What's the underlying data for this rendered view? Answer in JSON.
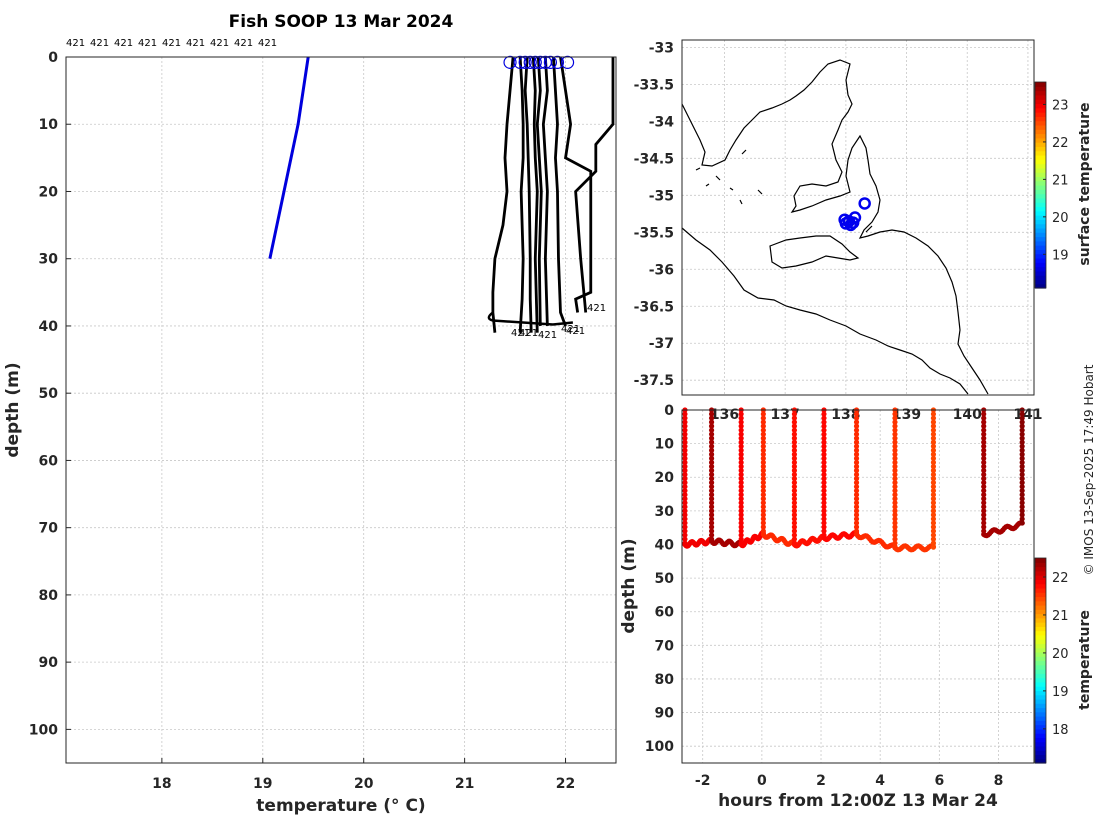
{
  "copyright": "© IMOS 13-Sep-2025 17:49 Hobart",
  "chart_data": [
    {
      "type": "line",
      "id": "profiles",
      "title": "Fish SOOP 13 Mar 2024",
      "xlabel": "temperature (° C)",
      "ylabel": "depth (m)",
      "xlim": [
        17.05,
        22.5
      ],
      "ylim": [
        0,
        105
      ],
      "xticks": [
        "18",
        "19",
        "20",
        "21",
        "22"
      ],
      "yticks": [
        "0",
        "10",
        "20",
        "30",
        "40",
        "50",
        "60",
        "70",
        "80",
        "90",
        "100"
      ],
      "top_labels": [
        "421",
        "421",
        "421",
        "421",
        "421",
        "421",
        "421",
        "421",
        "421"
      ],
      "bottom_labels": [
        "421",
        "421",
        "421",
        "421",
        "421",
        "421"
      ],
      "reference_line": {
        "name": "reference",
        "color": "#0000dd",
        "temp": [
          19.45,
          19.35,
          19.07
        ],
        "depth": [
          0,
          10,
          30
        ]
      },
      "series": [
        {
          "name": "profile-1",
          "temp": [
            21.48,
            21.45,
            21.42,
            21.4,
            21.42,
            21.38,
            21.3,
            21.28,
            21.28,
            21.3
          ],
          "depth": [
            0,
            5,
            10,
            15,
            20,
            25,
            30,
            35,
            38,
            41
          ]
        },
        {
          "name": "profile-2",
          "temp": [
            21.55,
            21.57,
            21.58,
            21.58,
            21.56,
            21.58,
            21.57,
            21.55
          ],
          "depth": [
            0,
            5,
            10,
            15,
            20,
            30,
            36,
            41
          ]
        },
        {
          "name": "profile-3",
          "temp": [
            21.62,
            21.6,
            21.62,
            21.63,
            21.64,
            21.65,
            21.65,
            21.66
          ],
          "depth": [
            0,
            5,
            10,
            15,
            20,
            30,
            36,
            41
          ]
        },
        {
          "name": "profile-4",
          "temp": [
            21.68,
            21.7,
            21.69,
            21.7,
            21.72,
            21.7,
            21.72
          ],
          "depth": [
            0,
            5,
            10,
            15,
            20,
            30,
            41
          ]
        },
        {
          "name": "profile-5",
          "temp": [
            21.73,
            21.75,
            21.72,
            21.76,
            21.74,
            21.75
          ],
          "depth": [
            0,
            5,
            10,
            20,
            30,
            40
          ]
        },
        {
          "name": "profile-6",
          "temp": [
            21.8,
            21.82,
            21.78,
            21.8,
            21.82,
            21.8,
            21.82
          ],
          "depth": [
            0,
            5,
            10,
            15,
            20,
            30,
            40
          ]
        },
        {
          "name": "profile-7",
          "temp": [
            21.88,
            21.9,
            21.92,
            21.9,
            21.92,
            21.93,
            21.95,
            22.0
          ],
          "depth": [
            0,
            5,
            10,
            15,
            20,
            30,
            38,
            40
          ]
        },
        {
          "name": "profile-8",
          "temp": [
            21.95,
            22.0,
            22.05,
            22.0,
            22.25,
            22.25,
            22.1,
            22.12
          ],
          "depth": [
            0,
            5,
            10,
            15,
            17,
            35,
            36,
            38
          ]
        },
        {
          "name": "profile-9",
          "temp": [
            22.47,
            22.47,
            22.3,
            22.3,
            22.1,
            22.15,
            22.2
          ],
          "depth": [
            0,
            10,
            13,
            17,
            20,
            30,
            38
          ]
        }
      ],
      "start_markers": [
        21.45,
        21.55,
        21.6,
        21.65,
        21.7,
        21.75,
        21.8,
        21.85,
        21.92,
        22.02
      ]
    },
    {
      "type": "map",
      "id": "map",
      "xlim": [
        135.3,
        141.1
      ],
      "ylim": [
        -37.7,
        -32.9
      ],
      "xticks": [
        "136",
        "137",
        "138",
        "139",
        "140",
        "141"
      ],
      "yticks": [
        "-33",
        "-33.5",
        "-34",
        "-34.5",
        "-35",
        "-35.5",
        "-36",
        "-36.5",
        "-37",
        "-37.5"
      ],
      "colorbar": {
        "label": "surface temperature",
        "ticks": [
          "19",
          "20",
          "21",
          "22",
          "23"
        ],
        "range": [
          18.1,
          23.6
        ]
      },
      "stations": [
        {
          "lon": 138.31,
          "lat": -35.11
        },
        {
          "lon": 138.15,
          "lat": -35.3
        },
        {
          "lon": 138.05,
          "lat": -35.35
        },
        {
          "lon": 138.0,
          "lat": -35.38
        },
        {
          "lon": 138.08,
          "lat": -35.4
        },
        {
          "lon": 137.98,
          "lat": -35.33
        },
        {
          "lon": 138.12,
          "lat": -35.37
        }
      ]
    },
    {
      "type": "scatter",
      "id": "section",
      "xlabel": "hours from 12:00Z 13 Mar 24",
      "ylabel": "depth (m)",
      "xlim": [
        -2.7,
        9.2
      ],
      "ylim": [
        0,
        105
      ],
      "xticks": [
        "-2",
        "0",
        "2",
        "4",
        "6",
        "8"
      ],
      "yticks": [
        "0",
        "10",
        "20",
        "30",
        "40",
        "50",
        "60",
        "70",
        "80",
        "90",
        "100"
      ],
      "colorbar": {
        "label": "temperature",
        "ticks": [
          "18",
          "19",
          "20",
          "21",
          "22"
        ],
        "range": [
          17.1,
          22.5
        ]
      },
      "casts": [
        {
          "hour": -2.6,
          "bottom": 40,
          "temp": 21.9
        },
        {
          "hour": -1.7,
          "bottom": 39,
          "temp": 22.3
        },
        {
          "hour": -0.7,
          "bottom": 40,
          "temp": 21.85
        },
        {
          "hour": 0.05,
          "bottom": 37,
          "temp": 21.6
        },
        {
          "hour": 1.1,
          "bottom": 40,
          "temp": 21.75
        },
        {
          "hour": 2.1,
          "bottom": 38,
          "temp": 21.8
        },
        {
          "hour": 3.2,
          "bottom": 37,
          "temp": 21.6
        },
        {
          "hour": 4.5,
          "bottom": 41,
          "temp": 21.55
        },
        {
          "hour": 5.8,
          "bottom": 41,
          "temp": 21.45
        },
        {
          "hour": 7.5,
          "bottom": 37,
          "temp": 22.3
        },
        {
          "hour": 8.8,
          "bottom": 34,
          "temp": 22.45
        }
      ]
    }
  ]
}
